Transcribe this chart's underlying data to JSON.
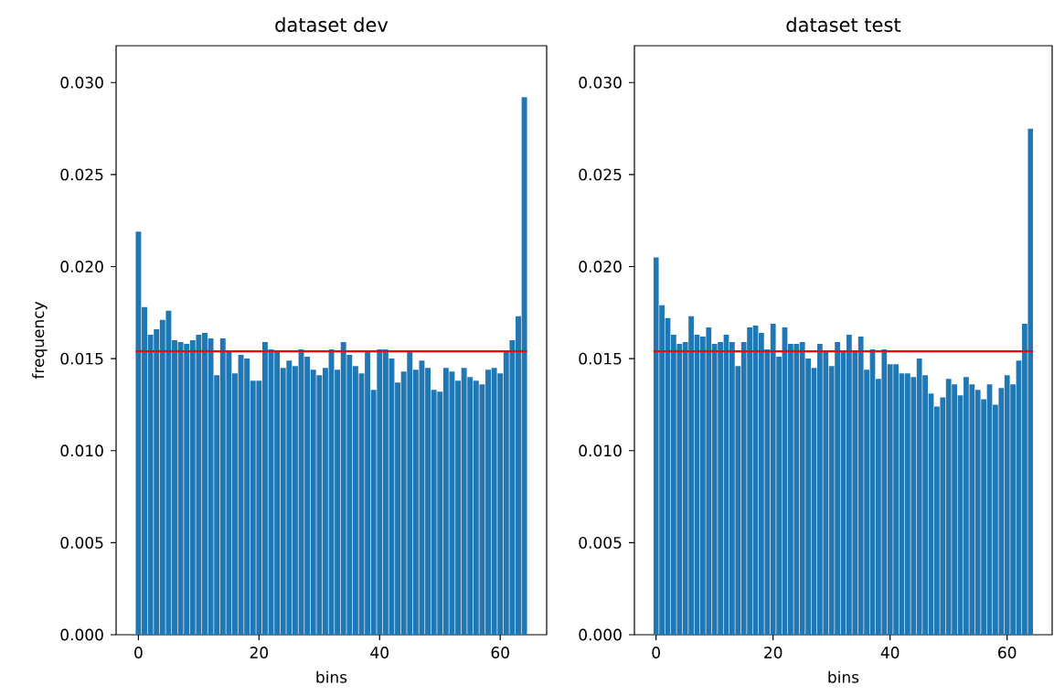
{
  "chart_data": [
    {
      "type": "bar",
      "title": "dataset dev",
      "xlabel": "bins",
      "ylabel": "frequency",
      "color": "#1f77b4",
      "x": [
        0,
        1,
        2,
        3,
        4,
        5,
        6,
        7,
        8,
        9,
        10,
        11,
        12,
        13,
        14,
        15,
        16,
        17,
        18,
        19,
        20,
        21,
        22,
        23,
        24,
        25,
        26,
        27,
        28,
        29,
        30,
        31,
        32,
        33,
        34,
        35,
        36,
        37,
        38,
        39,
        40,
        41,
        42,
        43,
        44,
        45,
        46,
        47,
        48,
        49,
        50,
        51,
        52,
        53,
        54,
        55,
        56,
        57,
        58,
        59,
        60,
        61,
        62,
        63,
        64
      ],
      "values": [
        0.0219,
        0.0178,
        0.0163,
        0.0166,
        0.0171,
        0.0176,
        0.016,
        0.0159,
        0.0158,
        0.016,
        0.0163,
        0.0164,
        0.0161,
        0.0141,
        0.0161,
        0.0154,
        0.0142,
        0.0152,
        0.015,
        0.0138,
        0.0138,
        0.0159,
        0.0155,
        0.0154,
        0.0145,
        0.0149,
        0.0146,
        0.0155,
        0.0151,
        0.0144,
        0.0141,
        0.0145,
        0.0155,
        0.0144,
        0.0159,
        0.0152,
        0.0146,
        0.0142,
        0.0154,
        0.0133,
        0.0155,
        0.0155,
        0.015,
        0.0137,
        0.0143,
        0.0154,
        0.0144,
        0.0149,
        0.0145,
        0.0133,
        0.0132,
        0.0145,
        0.0143,
        0.0138,
        0.0145,
        0.014,
        0.0138,
        0.0136,
        0.0144,
        0.0145,
        0.0142,
        0.0154,
        0.016,
        0.0173,
        0.0292
      ],
      "xlim": [
        -3.7,
        67.7
      ],
      "ylim": [
        0,
        0.032
      ],
      "xticks": [
        0,
        20,
        40,
        60
      ],
      "yticks": [
        {
          "value": 0,
          "label": "0.000"
        },
        {
          "value": 0.005,
          "label": "0.005"
        },
        {
          "value": 0.01,
          "label": "0.010"
        },
        {
          "value": 0.015,
          "label": "0.015"
        },
        {
          "value": 0.02,
          "label": "0.020"
        },
        {
          "value": 0.025,
          "label": "0.025"
        },
        {
          "value": 0.03,
          "label": "0.030"
        }
      ],
      "ref_lines": [
        {
          "axis": "y",
          "value": 0.0154,
          "color": "#ff0000"
        }
      ]
    },
    {
      "type": "bar",
      "title": "dataset test",
      "xlabel": "bins",
      "color": "#1f77b4",
      "x": [
        0,
        1,
        2,
        3,
        4,
        5,
        6,
        7,
        8,
        9,
        10,
        11,
        12,
        13,
        14,
        15,
        16,
        17,
        18,
        19,
        20,
        21,
        22,
        23,
        24,
        25,
        26,
        27,
        28,
        29,
        30,
        31,
        32,
        33,
        34,
        35,
        36,
        37,
        38,
        39,
        40,
        41,
        42,
        43,
        44,
        45,
        46,
        47,
        48,
        49,
        50,
        51,
        52,
        53,
        54,
        55,
        56,
        57,
        58,
        59,
        60,
        61,
        62,
        63,
        64
      ],
      "values": [
        0.0205,
        0.0179,
        0.0172,
        0.0163,
        0.0158,
        0.0159,
        0.0173,
        0.0163,
        0.0162,
        0.0167,
        0.0158,
        0.0159,
        0.0163,
        0.0159,
        0.0146,
        0.0159,
        0.0167,
        0.0168,
        0.0164,
        0.0155,
        0.0169,
        0.0151,
        0.0167,
        0.0158,
        0.0158,
        0.0159,
        0.015,
        0.0145,
        0.0158,
        0.0154,
        0.0146,
        0.0159,
        0.0154,
        0.0163,
        0.0154,
        0.0162,
        0.0144,
        0.0155,
        0.0139,
        0.0155,
        0.0147,
        0.0147,
        0.0142,
        0.0142,
        0.014,
        0.015,
        0.0141,
        0.0131,
        0.0124,
        0.0129,
        0.0139,
        0.0136,
        0.013,
        0.014,
        0.0136,
        0.0133,
        0.0128,
        0.0136,
        0.0125,
        0.0134,
        0.0141,
        0.0136,
        0.0149,
        0.0169,
        0.0275
      ],
      "xlim": [
        -3.7,
        67.7
      ],
      "ylim": [
        0,
        0.032
      ],
      "xticks": [
        0,
        20,
        40,
        60
      ],
      "yticks": [
        {
          "value": 0,
          "label": "0.000"
        },
        {
          "value": 0.005,
          "label": "0.005"
        },
        {
          "value": 0.01,
          "label": "0.010"
        },
        {
          "value": 0.015,
          "label": "0.015"
        },
        {
          "value": 0.02,
          "label": "0.020"
        },
        {
          "value": 0.025,
          "label": "0.025"
        },
        {
          "value": 0.03,
          "label": "0.030"
        }
      ],
      "ref_lines": [
        {
          "axis": "y",
          "value": 0.0154,
          "color": "#ff0000"
        }
      ]
    }
  ]
}
